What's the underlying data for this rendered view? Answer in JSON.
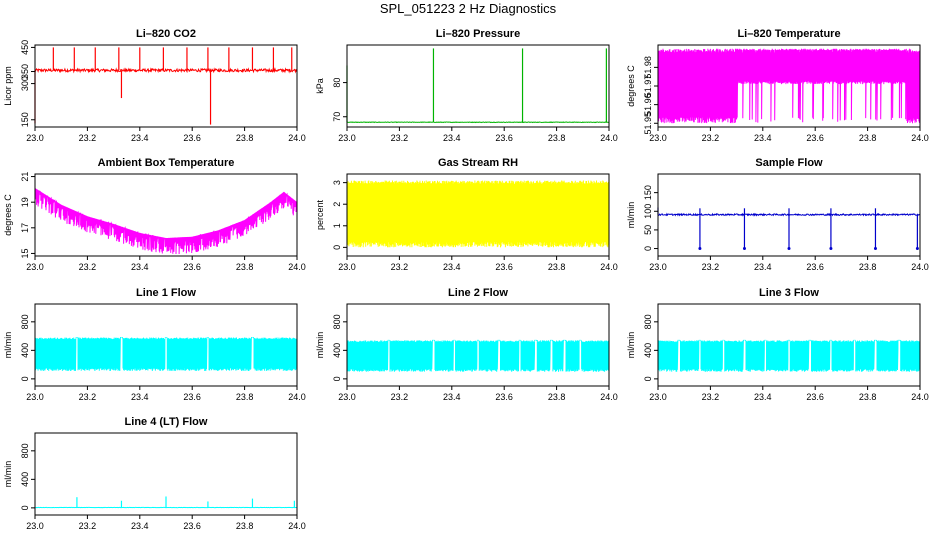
{
  "page": {
    "title": "SPL_051223  2 Hz Diagnostics"
  },
  "colors": {
    "red": "#ff0000",
    "green": "#00b400",
    "magenta": "#ff00ff",
    "yellow": "#ffff00",
    "blue": "#0000cc",
    "cyan": "#00ffff"
  },
  "chart_data": [
    {
      "id": "co2",
      "type": "line",
      "title": "Li–820 CO2",
      "xlabel": "",
      "ylabel": "Licor ppm",
      "xlim": [
        23.0,
        24.0
      ],
      "ylim": [
        120,
        460
      ],
      "xticks": [
        23.0,
        23.2,
        23.4,
        23.6,
        23.8,
        24.0
      ],
      "xtick_labels": [
        "23.0",
        "23.2",
        "23.4",
        "23.6",
        "23.8",
        "24.0"
      ],
      "yticks": [
        150,
        300,
        350,
        450
      ],
      "ytick_labels": [
        "150",
        "300",
        "350",
        "450"
      ],
      "color": "red",
      "baseline": 355,
      "noise": 12,
      "spikes": [
        {
          "x": 23.0,
          "y": 135
        },
        {
          "x": 23.07,
          "y": 450
        },
        {
          "x": 23.15,
          "y": 450
        },
        {
          "x": 23.23,
          "y": 450
        },
        {
          "x": 23.32,
          "y": 450
        },
        {
          "x": 23.33,
          "y": 240
        },
        {
          "x": 23.4,
          "y": 450
        },
        {
          "x": 23.49,
          "y": 450
        },
        {
          "x": 23.58,
          "y": 450
        },
        {
          "x": 23.66,
          "y": 450
        },
        {
          "x": 23.67,
          "y": 130
        },
        {
          "x": 23.74,
          "y": 450
        },
        {
          "x": 23.83,
          "y": 450
        },
        {
          "x": 23.91,
          "y": 450
        },
        {
          "x": 23.98,
          "y": 450
        }
      ]
    },
    {
      "id": "pressure",
      "type": "line",
      "title": "Li–820 Pressure",
      "xlabel": "",
      "ylabel": "kPa",
      "xlim": [
        23.0,
        24.0
      ],
      "ylim": [
        67,
        91
      ],
      "xticks": [
        23.0,
        23.2,
        23.4,
        23.6,
        23.8,
        24.0
      ],
      "xtick_labels": [
        "23.0",
        "23.2",
        "23.4",
        "23.6",
        "23.8",
        "24.0"
      ],
      "yticks": [
        70,
        80
      ],
      "ytick_labels": [
        "70",
        "80"
      ],
      "color": "green",
      "baseline": 68.4,
      "noise": 0.15,
      "spikes": [
        {
          "x": 23.0,
          "y": 85
        },
        {
          "x": 23.33,
          "y": 90
        },
        {
          "x": 23.67,
          "y": 90
        },
        {
          "x": 23.99,
          "y": 90
        }
      ]
    },
    {
      "id": "licor-temp",
      "type": "band",
      "title": "Li–820 Temperature",
      "xlabel": "",
      "ylabel": "degrees C",
      "xlim": [
        23.0,
        24.0
      ],
      "ylim": [
        51.948,
        51.992
      ],
      "xticks": [
        23.0,
        23.2,
        23.4,
        23.6,
        23.8,
        24.0
      ],
      "xtick_labels": [
        "23.0",
        "23.2",
        "23.4",
        "23.6",
        "23.8",
        "24.0"
      ],
      "yticks": [
        51.95,
        51.96,
        51.97,
        51.98
      ],
      "ytick_labels": [
        "51.95",
        "51.96",
        "51.97",
        "51.98"
      ],
      "color": "magenta",
      "low": 51.95,
      "high": 51.99,
      "gap_from": 23.3,
      "gap_to": 23.95,
      "gap_floor": 51.971
    },
    {
      "id": "ambient",
      "type": "line",
      "title": "Ambient Box Temperature",
      "xlabel": "",
      "ylabel": "degrees C",
      "xlim": [
        23.0,
        24.0
      ],
      "ylim": [
        14.8,
        21.2
      ],
      "xticks": [
        23.0,
        23.2,
        23.4,
        23.6,
        23.8,
        24.0
      ],
      "xtick_labels": [
        "23.0",
        "23.2",
        "23.4",
        "23.6",
        "23.8",
        "24.0"
      ],
      "yticks": [
        15,
        17,
        19,
        21
      ],
      "ytick_labels": [
        "15",
        "17",
        "19",
        "21"
      ],
      "color": "magenta",
      "curve": [
        [
          23.0,
          20.1
        ],
        [
          23.1,
          18.8
        ],
        [
          23.2,
          17.9
        ],
        [
          23.3,
          17.3
        ],
        [
          23.4,
          16.6
        ],
        [
          23.5,
          16.2
        ],
        [
          23.6,
          16.3
        ],
        [
          23.7,
          16.8
        ],
        [
          23.8,
          17.6
        ],
        [
          23.9,
          19.0
        ],
        [
          23.95,
          19.8
        ],
        [
          24.0,
          19.0
        ]
      ],
      "noise": 1.3
    },
    {
      "id": "rh",
      "type": "band",
      "title": "Gas Stream RH",
      "xlabel": "",
      "ylabel": "percent",
      "xlim": [
        23.0,
        24.0
      ],
      "ylim": [
        -0.4,
        3.4
      ],
      "xticks": [
        23.0,
        23.2,
        23.4,
        23.6,
        23.8,
        24.0
      ],
      "xtick_labels": [
        "23.0",
        "23.2",
        "23.4",
        "23.6",
        "23.8",
        "24.0"
      ],
      "yticks": [
        0,
        1,
        2,
        3
      ],
      "ytick_labels": [
        "0",
        "1",
        "2",
        "3"
      ],
      "color": "yellow",
      "low": 0.0,
      "high": 3.1
    },
    {
      "id": "sample-flow",
      "type": "line",
      "title": "Sample Flow",
      "xlabel": "",
      "ylabel": "ml/min",
      "xlim": [
        23.0,
        24.0
      ],
      "ylim": [
        -20,
        200
      ],
      "xticks": [
        23.0,
        23.2,
        23.4,
        23.6,
        23.8,
        24.0
      ],
      "xtick_labels": [
        "23.0",
        "23.2",
        "23.4",
        "23.6",
        "23.8",
        "24.0"
      ],
      "yticks": [
        0,
        50,
        100,
        150
      ],
      "ytick_labels": [
        "0",
        "50",
        "100",
        "150"
      ],
      "color": "blue",
      "baseline": 91,
      "noise": 4,
      "spikes": [
        {
          "x": 23.0,
          "y": 110
        },
        {
          "x": 23.16,
          "y": 0
        },
        {
          "x": 23.16,
          "y": 108
        },
        {
          "x": 23.33,
          "y": 0
        },
        {
          "x": 23.33,
          "y": 108
        },
        {
          "x": 23.5,
          "y": 0
        },
        {
          "x": 23.5,
          "y": 108
        },
        {
          "x": 23.66,
          "y": 0
        },
        {
          "x": 23.66,
          "y": 108
        },
        {
          "x": 23.83,
          "y": 0
        },
        {
          "x": 23.83,
          "y": 108
        },
        {
          "x": 23.99,
          "y": 0
        }
      ]
    },
    {
      "id": "line1",
      "type": "band",
      "title": "Line 1 Flow",
      "xlabel": "",
      "ylabel": "ml/min",
      "xlim": [
        23.0,
        24.0
      ],
      "ylim": [
        -100,
        1050
      ],
      "xticks": [
        23.0,
        23.2,
        23.4,
        23.6,
        23.8,
        24.0
      ],
      "xtick_labels": [
        "23.0",
        "23.2",
        "23.4",
        "23.6",
        "23.8",
        "24.0"
      ],
      "yticks": [
        0,
        400,
        800
      ],
      "ytick_labels": [
        "0",
        "400",
        "800"
      ],
      "color": "cyan",
      "low": 110,
      "high": 580,
      "gaps": [
        23.16,
        23.33,
        23.5,
        23.66,
        23.83
      ]
    },
    {
      "id": "line2",
      "type": "band",
      "title": "Line 2 Flow",
      "xlabel": "",
      "ylabel": "ml/min",
      "xlim": [
        23.0,
        24.0
      ],
      "ylim": [
        -100,
        1050
      ],
      "xticks": [
        23.0,
        23.2,
        23.4,
        23.6,
        23.8,
        24.0
      ],
      "xtick_labels": [
        "23.0",
        "23.2",
        "23.4",
        "23.6",
        "23.8",
        "24.0"
      ],
      "yticks": [
        0,
        400,
        800
      ],
      "ytick_labels": [
        "0",
        "400",
        "800"
      ],
      "color": "cyan",
      "low": 100,
      "high": 540,
      "gaps": [
        23.16,
        23.33,
        23.41,
        23.5,
        23.58,
        23.66,
        23.72,
        23.78,
        23.83,
        23.89
      ]
    },
    {
      "id": "line3",
      "type": "band",
      "title": "Line 3 Flow",
      "xlabel": "",
      "ylabel": "ml/min",
      "xlim": [
        23.0,
        24.0
      ],
      "ylim": [
        -100,
        1050
      ],
      "xticks": [
        23.0,
        23.2,
        23.4,
        23.6,
        23.8,
        24.0
      ],
      "xtick_labels": [
        "23.0",
        "23.2",
        "23.4",
        "23.6",
        "23.8",
        "24.0"
      ],
      "yticks": [
        0,
        400,
        800
      ],
      "ytick_labels": [
        "0",
        "400",
        "800"
      ],
      "color": "cyan",
      "low": 100,
      "high": 540,
      "gaps": [
        23.08,
        23.16,
        23.25,
        23.33,
        23.41,
        23.5,
        23.58,
        23.66,
        23.75,
        23.83,
        23.92
      ]
    },
    {
      "id": "line4",
      "type": "line",
      "title": "Line 4 (LT) Flow",
      "xlabel": "",
      "ylabel": "ml/min",
      "xlim": [
        23.0,
        24.0
      ],
      "ylim": [
        -100,
        1050
      ],
      "xticks": [
        23.0,
        23.2,
        23.4,
        23.6,
        23.8,
        24.0
      ],
      "xtick_labels": [
        "23.0",
        "23.2",
        "23.4",
        "23.6",
        "23.8",
        "24.0"
      ],
      "yticks": [
        0,
        400,
        800
      ],
      "ytick_labels": [
        "0",
        "400",
        "800"
      ],
      "color": "cyan",
      "baseline": 5,
      "noise": 4,
      "spikes": [
        {
          "x": 23.16,
          "y": 150
        },
        {
          "x": 23.33,
          "y": 100
        },
        {
          "x": 23.5,
          "y": 160
        },
        {
          "x": 23.66,
          "y": 90
        },
        {
          "x": 23.83,
          "y": 130
        },
        {
          "x": 23.99,
          "y": 100
        }
      ]
    }
  ]
}
